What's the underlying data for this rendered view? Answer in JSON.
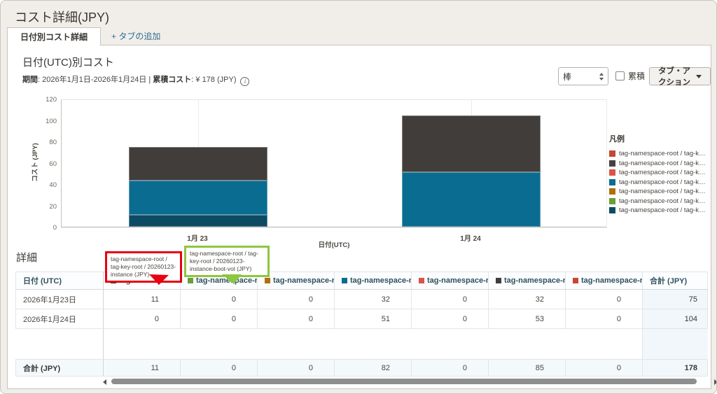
{
  "title": "コスト詳細(JPY)",
  "tabs": {
    "active_tab": "日付別コスト詳細",
    "add_tab": "+ タブの追加"
  },
  "panel": {
    "heading": "日付(UTC)別コスト",
    "period_label": "期間",
    "period_value": ": 2026年1月1日-2026年1月24日  |  ",
    "total_label": "累積コスト",
    "total_value": ": ¥ 178 (JPY)",
    "info_icon_glyph": "i",
    "chart_type_value": "棒",
    "cumulative_label": "累積",
    "actions_label": "タブ・アクション"
  },
  "chart_data": {
    "type": "bar",
    "stacked": true,
    "title": "日付(UTC)別コスト",
    "xlabel": "日付(UTC)",
    "ylabel": "コスト (JPY)",
    "ylim": [
      0,
      120
    ],
    "yticks": [
      0,
      20,
      40,
      60,
      80,
      100,
      120
    ],
    "grid": "minimal-vertical-category-lines",
    "legend_position": "right",
    "categories": [
      "1月 23",
      "1月 24"
    ],
    "series": [
      {
        "name": "tag-namespace-root / tag-key-root / 20260123-instance (JPY)",
        "color": "#0d4a63",
        "values": [
          11,
          0
        ]
      },
      {
        "name": "tag-namespace-root / tag-ke… (teal series)",
        "color": "#0a6c90",
        "values": [
          32,
          51
        ]
      },
      {
        "name": "tag-namespace-root / tag-ke… (dark series)",
        "color": "#413d3b",
        "values": [
          32,
          53
        ]
      }
    ],
    "category_totals": [
      75,
      104
    ]
  },
  "legend": {
    "title": "凡例",
    "items": [
      {
        "label": "tag-namespace-root / tag-ke…",
        "color": "#c74634"
      },
      {
        "label": "tag-namespace-root / tag-ke…",
        "color": "#454240"
      },
      {
        "label": "tag-namespace-root / tag-ke…",
        "color": "#d9544a"
      },
      {
        "label": "tag-namespace-root / tag-ke…",
        "color": "#0a6c90"
      },
      {
        "label": "tag-namespace-root / tag-ke…",
        "color": "#b0700f"
      },
      {
        "label": "tag-namespace-root / tag-ke…",
        "color": "#6b9f3a"
      },
      {
        "label": "tag-namespace-root / tag-ke…",
        "color": "#0d4a63"
      }
    ]
  },
  "details": {
    "heading": "詳細",
    "callouts": {
      "red_text": "tag-namespace-root / tag-key-root / 20260123-instance (JPY)",
      "red_color": "#e60012",
      "green_text": "tag-namespace-root / tag-key-root / 20260123-instance-boot-vol (JPY)",
      "green_color": "#8dc63f"
    },
    "table": {
      "date_header": "日付 (UTC)",
      "tag_header_label": "tag-namespace-r…",
      "total_header": "合計 (JPY)",
      "tag_columns": [
        {
          "color": "#0d4a63",
          "dropdown": true
        },
        {
          "color": "#6b9f3a",
          "dropdown": true
        },
        {
          "color": "#b0700f",
          "dropdown": false
        },
        {
          "color": "#0a6c90",
          "dropdown": false
        },
        {
          "color": "#d9544a",
          "dropdown": false
        },
        {
          "color": "#413d3b",
          "dropdown": false
        },
        {
          "color": "#c74634",
          "dropdown": false
        }
      ],
      "rows": [
        {
          "date": "2026年1月23日",
          "values": [
            11,
            0,
            0,
            32,
            0,
            32,
            0
          ],
          "total": 75
        },
        {
          "date": "2026年1月24日",
          "values": [
            0,
            0,
            0,
            51,
            0,
            53,
            0
          ],
          "total": 104
        }
      ],
      "footer": {
        "label": "合計 (JPY)",
        "values": [
          11,
          0,
          0,
          82,
          0,
          85,
          0
        ],
        "total": 178
      }
    }
  }
}
